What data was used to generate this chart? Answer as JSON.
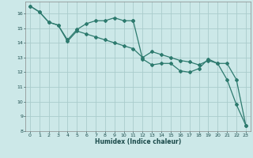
{
  "title": "",
  "xlabel": "Humidex (Indice chaleur)",
  "background_color": "#cce8e8",
  "grid_color": "#aacccc",
  "line_color": "#2d7a6e",
  "xlim": [
    -0.5,
    23.5
  ],
  "ylim": [
    8,
    16.8
  ],
  "yticks": [
    8,
    9,
    10,
    11,
    12,
    13,
    14,
    15,
    16
  ],
  "xticks": [
    0,
    1,
    2,
    3,
    4,
    5,
    6,
    7,
    8,
    9,
    10,
    11,
    12,
    13,
    14,
    15,
    16,
    17,
    18,
    19,
    20,
    21,
    22,
    23
  ],
  "line1_x": [
    0,
    1,
    2,
    3,
    4,
    5,
    6,
    7,
    8,
    9,
    10,
    11
  ],
  "line1_y": [
    16.5,
    16.1,
    15.4,
    15.2,
    14.2,
    14.9,
    15.3,
    15.5,
    15.5,
    15.7,
    15.5,
    15.5
  ],
  "line2_x": [
    0,
    1,
    2,
    3,
    4,
    5,
    6,
    7,
    8,
    9,
    10,
    11,
    12,
    13,
    14,
    15,
    16,
    17,
    18,
    19,
    20,
    21,
    22,
    23
  ],
  "line2_y": [
    16.5,
    16.1,
    15.4,
    15.2,
    14.1,
    14.8,
    14.6,
    14.4,
    14.2,
    14.0,
    13.8,
    13.6,
    13.0,
    13.4,
    13.2,
    13.0,
    12.8,
    12.7,
    12.5,
    12.8,
    12.6,
    11.5,
    9.8,
    8.4
  ],
  "line3_x": [
    11,
    12,
    13,
    14,
    15,
    16,
    17,
    18,
    19,
    20,
    21,
    22,
    23
  ],
  "line3_y": [
    15.5,
    12.9,
    12.5,
    12.6,
    12.6,
    12.1,
    12.0,
    12.25,
    12.9,
    12.6,
    12.6,
    11.5,
    8.4
  ]
}
